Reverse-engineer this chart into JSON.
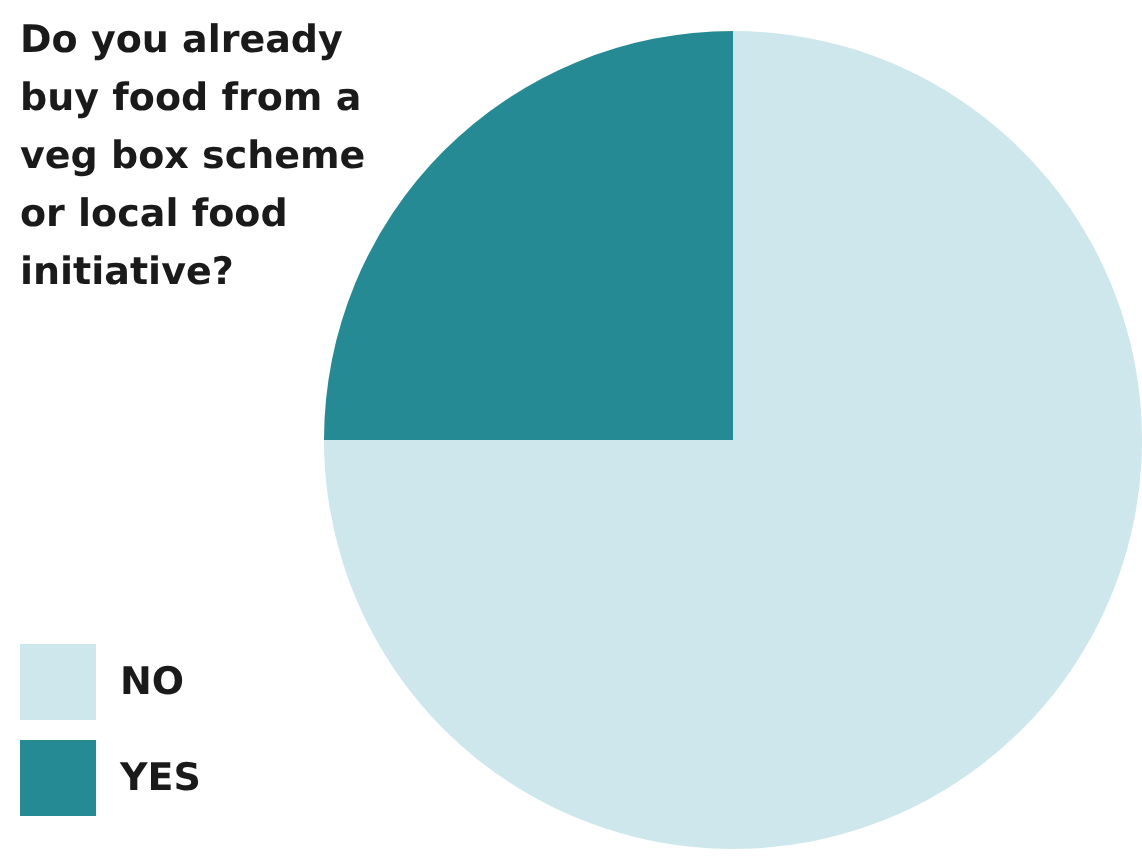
{
  "chart_data": {
    "type": "pie",
    "title": "Do you already buy food from a veg box scheme or local food initiative?",
    "categories": [
      "NO",
      "YES"
    ],
    "values": [
      75,
      25
    ],
    "colors": [
      "#cde7ec",
      "#268a94"
    ],
    "legend": "bottom left"
  }
}
